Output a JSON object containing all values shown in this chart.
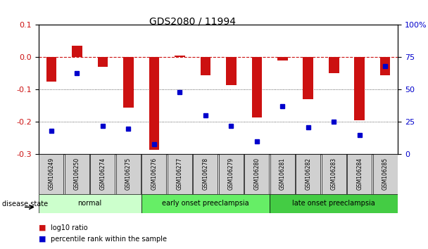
{
  "title": "GDS2080 / 11994",
  "samples": [
    "GSM106249",
    "GSM106250",
    "GSM106274",
    "GSM106275",
    "GSM106276",
    "GSM106277",
    "GSM106278",
    "GSM106279",
    "GSM106280",
    "GSM106281",
    "GSM106282",
    "GSM106283",
    "GSM106284",
    "GSM106285"
  ],
  "log10_ratio": [
    -0.075,
    0.035,
    -0.03,
    -0.155,
    -0.285,
    0.005,
    -0.055,
    -0.085,
    -0.185,
    -0.01,
    -0.13,
    -0.05,
    -0.195,
    -0.055
  ],
  "percentile_rank": [
    18,
    63,
    22,
    20,
    8,
    48,
    30,
    22,
    10,
    37,
    21,
    25,
    15,
    68
  ],
  "bar_color": "#cc1111",
  "dot_color": "#0000cc",
  "disease_groups": [
    {
      "label": "normal",
      "start": 0,
      "end": 4,
      "color": "#ccffcc"
    },
    {
      "label": "early onset preeclampsia",
      "start": 4,
      "end": 9,
      "color": "#66ee66"
    },
    {
      "label": "late onset preeclampsia",
      "start": 9,
      "end": 14,
      "color": "#44cc44"
    }
  ],
  "ylim_left": [
    -0.3,
    0.1
  ],
  "ylim_right": [
    0,
    100
  ],
  "ylabel_left_color": "#cc1111",
  "ylabel_right_color": "#0000cc",
  "hline_zero_color": "#cc1111",
  "hline_grid_color": "#333333",
  "legend_log10": "log10 ratio",
  "legend_pct": "percentile rank within the sample"
}
